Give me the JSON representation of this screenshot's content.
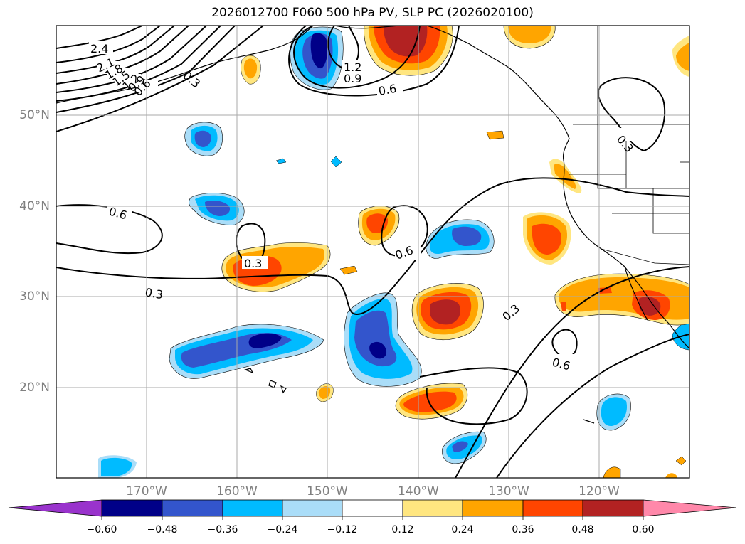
{
  "title": "2026012700 F060 500 hPa PV, SLP PC (2026020100)",
  "lat_labels": [
    "50°N",
    "40°N",
    "30°N",
    "20°N"
  ],
  "lon_labels": [
    "170°W",
    "160°W",
    "150°W",
    "140°W",
    "130°W",
    "120°W"
  ],
  "contour_labels": [
    "2.4",
    "2.1",
    "1.8",
    "1.5",
    "1.2",
    "0.9",
    "0.6",
    "0.3",
    "1.2",
    "0.9",
    "0.6",
    "0.6",
    "0.6",
    "0.3",
    "0.3",
    "0.6",
    "0.3",
    "0.3",
    "0.6",
    "0.3"
  ],
  "colorbar": {
    "ticks": [
      "−0.60",
      "−0.48",
      "−0.36",
      "−0.24",
      "−0.12",
      "0.12",
      "0.24",
      "0.36",
      "0.48",
      "0.60"
    ],
    "colors": [
      "#9933cc",
      "#000088",
      "#3355cc",
      "#00bbff",
      "#aaddf8",
      "#ffffff",
      "#ffe680",
      "#ffa500",
      "#ff4500",
      "#b22222",
      "#ff88aa"
    ]
  },
  "fill_colors": {
    "neg1": "#aaddf8",
    "neg2": "#00bbff",
    "neg3": "#3355cc",
    "neg4": "#000088",
    "pos1": "#ffe680",
    "pos2": "#ffa500",
    "pos3": "#ff4500",
    "pos4": "#b22222"
  }
}
